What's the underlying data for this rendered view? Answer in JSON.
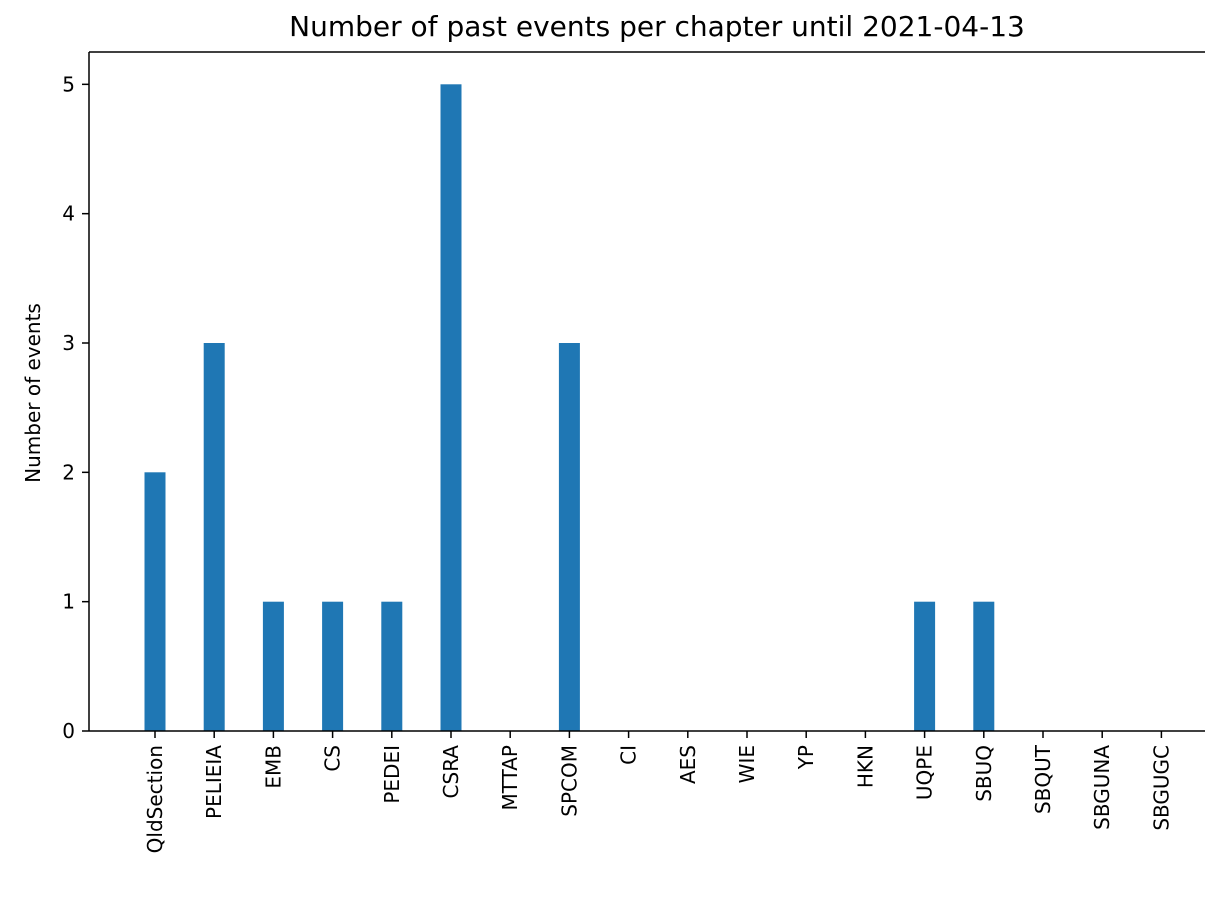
{
  "chart_data": {
    "type": "bar",
    "title": "Number of past events per chapter until 2021-04-13",
    "xlabel": "",
    "ylabel": "Number of events",
    "categories": [
      "QldSection",
      "PELIEIA",
      "EMB",
      "CS",
      "PEDEI",
      "CSRA",
      "MTTAP",
      "SPCOM",
      "CI",
      "AES",
      "WIE",
      "YP",
      "HKN",
      "UQPE",
      "SBUQ",
      "SBQUT",
      "SBGUNA",
      "SBGUGC"
    ],
    "values": [
      2,
      3,
      1,
      1,
      1,
      5,
      0,
      3,
      0,
      0,
      0,
      0,
      0,
      1,
      1,
      0,
      0,
      0
    ],
    "ylim": [
      0,
      5.25
    ],
    "yticks": [
      0,
      1,
      2,
      3,
      4,
      5
    ],
    "grid": false,
    "legend": "none",
    "bar_color": "#1f77b4"
  }
}
